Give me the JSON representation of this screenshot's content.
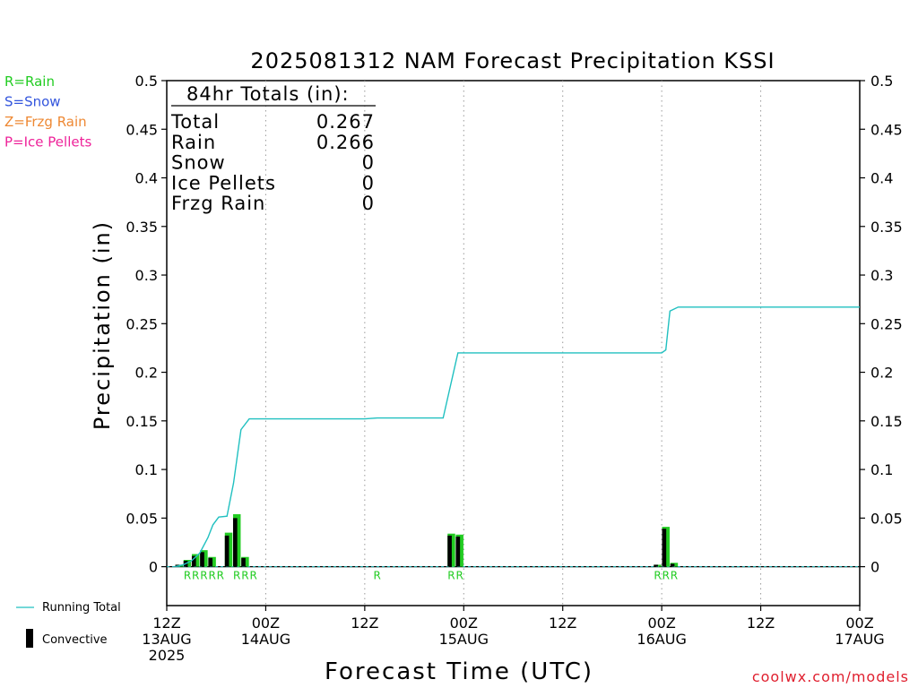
{
  "chart_data": {
    "type": "bar",
    "title": "2025081312 NAM Forecast Precipitation KSSI",
    "xlabel": "Forecast Time (UTC)",
    "ylabel": "Precipitation (in)",
    "x_unit": "forecast hour",
    "xlim": [
      0,
      84
    ],
    "ylim": [
      -0.04,
      0.5
    ],
    "yticks": [
      0,
      0.05,
      0.1,
      0.15,
      0.2,
      0.25,
      0.3,
      0.35,
      0.4,
      0.45,
      0.5
    ],
    "ytick_labels": [
      "0",
      "0.05",
      "0.1",
      "0.15",
      "0.2",
      "0.25",
      "0.3",
      "0.35",
      "0.4",
      "0.45",
      "0.5"
    ],
    "xticks": [
      {
        "hour": 0,
        "line1": "12Z",
        "line2": "13AUG",
        "line3": "2025"
      },
      {
        "hour": 12,
        "line1": "00Z",
        "line2": "14AUG",
        "line3": ""
      },
      {
        "hour": 24,
        "line1": "12Z",
        "line2": "",
        "line3": ""
      },
      {
        "hour": 36,
        "line1": "00Z",
        "line2": "15AUG",
        "line3": ""
      },
      {
        "hour": 48,
        "line1": "12Z",
        "line2": "",
        "line3": ""
      },
      {
        "hour": 60,
        "line1": "00Z",
        "line2": "16AUG",
        "line3": ""
      },
      {
        "hour": 72,
        "line1": "12Z",
        "line2": "",
        "line3": ""
      },
      {
        "hour": 84,
        "line1": "00Z",
        "line2": "17AUG",
        "line3": ""
      }
    ],
    "grid": "dotted vertical",
    "precip_bars": [
      {
        "hour": 2,
        "total": 0.002,
        "convective": 0.002
      },
      {
        "hour": 3,
        "total": 0.007,
        "convective": 0.006
      },
      {
        "hour": 4,
        "total": 0.013,
        "convective": 0.011
      },
      {
        "hour": 5,
        "total": 0.017,
        "convective": 0.015
      },
      {
        "hour": 6,
        "total": 0.01,
        "convective": 0.009
      },
      {
        "hour": 8,
        "total": 0.035,
        "convective": 0.032
      },
      {
        "hour": 9,
        "total": 0.054,
        "convective": 0.05
      },
      {
        "hour": 10,
        "total": 0.01,
        "convective": 0.009
      },
      {
        "hour": 35,
        "total": 0.034,
        "convective": 0.032
      },
      {
        "hour": 36,
        "total": 0.033,
        "convective": 0.031
      },
      {
        "hour": 60,
        "total": 0.002,
        "convective": 0.002
      },
      {
        "hour": 61,
        "total": 0.041,
        "convective": 0.039
      },
      {
        "hour": 62,
        "total": 0.004,
        "convective": 0.003
      }
    ],
    "ptype_marks": [
      {
        "hour": 3,
        "label": "R"
      },
      {
        "hour": 4,
        "label": "R"
      },
      {
        "hour": 5,
        "label": "R"
      },
      {
        "hour": 6,
        "label": "R"
      },
      {
        "hour": 7,
        "label": "R"
      },
      {
        "hour": 9,
        "label": "R"
      },
      {
        "hour": 10,
        "label": "R"
      },
      {
        "hour": 11,
        "label": "R"
      },
      {
        "hour": 26,
        "label": "R"
      },
      {
        "hour": 35,
        "label": "R"
      },
      {
        "hour": 36,
        "label": "R"
      },
      {
        "hour": 60,
        "label": "R"
      },
      {
        "hour": 61,
        "label": "R"
      },
      {
        "hour": 62,
        "label": "R"
      }
    ],
    "running_total": [
      [
        1,
        0
      ],
      [
        2,
        0.002
      ],
      [
        3,
        0.006
      ],
      [
        4,
        0.014
      ],
      [
        5,
        0.03
      ],
      [
        5.6,
        0.043
      ],
      [
        6.3,
        0.051
      ],
      [
        7.3,
        0.052
      ],
      [
        8.1,
        0.086
      ],
      [
        9,
        0.141
      ],
      [
        10,
        0.152
      ],
      [
        24,
        0.152
      ],
      [
        25.5,
        0.153
      ],
      [
        33.5,
        0.153
      ],
      [
        35.3,
        0.22
      ],
      [
        60,
        0.22
      ],
      [
        60.5,
        0.223
      ],
      [
        61,
        0.263
      ],
      [
        62,
        0.267
      ],
      [
        84,
        0.267
      ]
    ],
    "series_colors": {
      "running_total": "#20c0c0",
      "rain_bar": "#22cc22",
      "convective_bar": "#000000",
      "rain_label": "#22cc22",
      "url": "#e0202f"
    }
  },
  "totals_box": {
    "header": "84hr Totals (in):",
    "rows": [
      {
        "label": "Total",
        "value": "0.267"
      },
      {
        "label": "Rain",
        "value": "0.266"
      },
      {
        "label": "Snow",
        "value": "0"
      },
      {
        "label": "Ice Pellets",
        "value": "0"
      },
      {
        "label": "Frzg Rain",
        "value": "0"
      }
    ]
  },
  "ptype_legend": [
    {
      "text": "R=Rain",
      "color": "#22cc22"
    },
    {
      "text": "S=Snow",
      "color": "#3355dd"
    },
    {
      "text": "Z=Frzg Rain",
      "color": "#ee8833"
    },
    {
      "text": "P=Ice Pellets",
      "color": "#ee2299"
    }
  ],
  "line_legend": {
    "running_total": "Running Total",
    "convective": "Convective"
  },
  "footer_url": "coolwx.com/models"
}
